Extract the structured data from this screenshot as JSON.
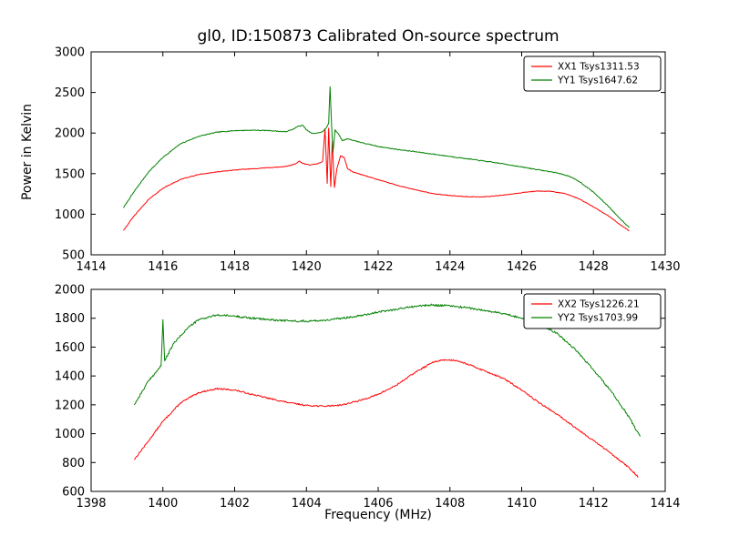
{
  "figure": {
    "title": "gl0, ID:150873 Calibrated On-source spectrum",
    "xlabel": "Frequency (MHz)",
    "ylabel": "Power in Kelvin",
    "background": "#ffffff"
  },
  "colors": {
    "xx": "#ff0000",
    "yy": "#008000",
    "axis": "#000000",
    "legend_border": "#000000"
  },
  "chart_data": [
    {
      "type": "line",
      "title": "gl0, ID:150873 Calibrated On-source spectrum",
      "xlabel": "",
      "ylabel": "Power in Kelvin",
      "xlim": [
        1414,
        1430
      ],
      "ylim": [
        500,
        3000
      ],
      "xticks": [
        1414,
        1416,
        1418,
        1420,
        1422,
        1424,
        1426,
        1428,
        1430
      ],
      "yticks": [
        500,
        1000,
        1500,
        2000,
        2500,
        3000
      ],
      "grid": false,
      "legend_position": "upper right",
      "series": [
        {
          "name": "XX1 Tsys1311.53",
          "color": "#ff0000",
          "noise": 4,
          "seed": 42,
          "points": [
            [
              1414.9,
              800
            ],
            [
              1415.2,
              980
            ],
            [
              1415.6,
              1180
            ],
            [
              1416.0,
              1320
            ],
            [
              1416.5,
              1430
            ],
            [
              1417.0,
              1490
            ],
            [
              1417.5,
              1520
            ],
            [
              1418.0,
              1545
            ],
            [
              1418.5,
              1560
            ],
            [
              1419.0,
              1575
            ],
            [
              1419.4,
              1585
            ],
            [
              1419.7,
              1620
            ],
            [
              1419.8,
              1655
            ],
            [
              1419.9,
              1625
            ],
            [
              1420.1,
              1605
            ],
            [
              1420.3,
              1620
            ],
            [
              1420.45,
              1650
            ],
            [
              1420.52,
              2050
            ],
            [
              1420.58,
              1380
            ],
            [
              1420.62,
              2060
            ],
            [
              1420.68,
              1340
            ],
            [
              1420.72,
              1900
            ],
            [
              1420.78,
              1330
            ],
            [
              1420.85,
              1560
            ],
            [
              1420.95,
              1720
            ],
            [
              1421.05,
              1700
            ],
            [
              1421.15,
              1560
            ],
            [
              1421.3,
              1520
            ],
            [
              1421.6,
              1480
            ],
            [
              1422.0,
              1425
            ],
            [
              1422.5,
              1360
            ],
            [
              1423.0,
              1305
            ],
            [
              1423.5,
              1255
            ],
            [
              1424.0,
              1230
            ],
            [
              1424.5,
              1215
            ],
            [
              1425.0,
              1215
            ],
            [
              1425.5,
              1235
            ],
            [
              1426.0,
              1265
            ],
            [
              1426.4,
              1285
            ],
            [
              1426.8,
              1282
            ],
            [
              1427.2,
              1255
            ],
            [
              1427.6,
              1190
            ],
            [
              1428.0,
              1090
            ],
            [
              1428.4,
              985
            ],
            [
              1428.7,
              885
            ],
            [
              1429.0,
              795
            ]
          ]
        },
        {
          "name": "YY1 Tsys1647.62",
          "color": "#008000",
          "noise": 5,
          "seed": 7,
          "points": [
            [
              1414.9,
              1080
            ],
            [
              1415.2,
              1280
            ],
            [
              1415.6,
              1520
            ],
            [
              1416.0,
              1700
            ],
            [
              1416.5,
              1870
            ],
            [
              1417.0,
              1960
            ],
            [
              1417.5,
              2010
            ],
            [
              1418.0,
              2030
            ],
            [
              1418.5,
              2035
            ],
            [
              1419.0,
              2030
            ],
            [
              1419.4,
              2015
            ],
            [
              1419.6,
              2040
            ],
            [
              1419.75,
              2080
            ],
            [
              1419.9,
              2095
            ],
            [
              1420.0,
              2040
            ],
            [
              1420.15,
              1995
            ],
            [
              1420.3,
              2000
            ],
            [
              1420.45,
              2015
            ],
            [
              1420.55,
              2060
            ],
            [
              1420.62,
              2120
            ],
            [
              1420.66,
              2570
            ],
            [
              1420.7,
              2120
            ],
            [
              1420.74,
              1765
            ],
            [
              1420.8,
              2040
            ],
            [
              1420.9,
              1985
            ],
            [
              1421.0,
              1905
            ],
            [
              1421.15,
              1930
            ],
            [
              1421.35,
              1905
            ],
            [
              1421.6,
              1875
            ],
            [
              1422.0,
              1835
            ],
            [
              1422.5,
              1800
            ],
            [
              1423.0,
              1772
            ],
            [
              1423.5,
              1742
            ],
            [
              1424.0,
              1712
            ],
            [
              1424.5,
              1682
            ],
            [
              1425.0,
              1652
            ],
            [
              1425.5,
              1620
            ],
            [
              1426.0,
              1582
            ],
            [
              1426.5,
              1545
            ],
            [
              1427.0,
              1508
            ],
            [
              1427.3,
              1472
            ],
            [
              1427.6,
              1405
            ],
            [
              1428.0,
              1272
            ],
            [
              1428.4,
              1105
            ],
            [
              1428.7,
              965
            ],
            [
              1429.0,
              835
            ]
          ]
        }
      ]
    },
    {
      "type": "line",
      "title": "",
      "xlabel": "Frequency (MHz)",
      "ylabel": "",
      "xlim": [
        1398,
        1414
      ],
      "ylim": [
        600,
        2000
      ],
      "xticks": [
        1398,
        1400,
        1402,
        1404,
        1406,
        1408,
        1410,
        1412,
        1414
      ],
      "yticks": [
        600,
        800,
        1000,
        1200,
        1400,
        1600,
        1800,
        2000
      ],
      "grid": false,
      "legend_position": "upper right",
      "series": [
        {
          "name": "XX2 Tsys1226.21",
          "color": "#ff0000",
          "noise": 5,
          "seed": 13,
          "points": [
            [
              1399.2,
              820
            ],
            [
              1399.6,
              950
            ],
            [
              1400.0,
              1085
            ],
            [
              1400.5,
              1215
            ],
            [
              1401.0,
              1285
            ],
            [
              1401.5,
              1312
            ],
            [
              1402.0,
              1302
            ],
            [
              1402.5,
              1272
            ],
            [
              1403.0,
              1242
            ],
            [
              1403.5,
              1215
            ],
            [
              1404.0,
              1196
            ],
            [
              1404.5,
              1190
            ],
            [
              1405.0,
              1200
            ],
            [
              1405.5,
              1230
            ],
            [
              1406.0,
              1272
            ],
            [
              1406.5,
              1335
            ],
            [
              1407.0,
              1420
            ],
            [
              1407.5,
              1492
            ],
            [
              1407.8,
              1512
            ],
            [
              1408.2,
              1508
            ],
            [
              1408.6,
              1472
            ],
            [
              1409.0,
              1432
            ],
            [
              1409.5,
              1382
            ],
            [
              1410.0,
              1302
            ],
            [
              1410.5,
              1212
            ],
            [
              1411.0,
              1132
            ],
            [
              1411.5,
              1042
            ],
            [
              1412.0,
              952
            ],
            [
              1412.5,
              862
            ],
            [
              1413.0,
              762
            ],
            [
              1413.25,
              700
            ]
          ]
        },
        {
          "name": "YY2 Tsys1703.99",
          "color": "#008000",
          "noise": 7,
          "seed": 99,
          "points": [
            [
              1399.2,
              1200
            ],
            [
              1399.6,
              1365
            ],
            [
              1399.95,
              1470
            ],
            [
              1400.0,
              1790
            ],
            [
              1400.05,
              1505
            ],
            [
              1400.3,
              1625
            ],
            [
              1400.7,
              1735
            ],
            [
              1401.0,
              1790
            ],
            [
              1401.5,
              1822
            ],
            [
              1402.0,
              1815
            ],
            [
              1402.5,
              1800
            ],
            [
              1403.0,
              1790
            ],
            [
              1403.5,
              1782
            ],
            [
              1404.0,
              1780
            ],
            [
              1404.5,
              1786
            ],
            [
              1405.0,
              1800
            ],
            [
              1405.5,
              1820
            ],
            [
              1406.0,
              1842
            ],
            [
              1406.5,
              1862
            ],
            [
              1407.0,
              1882
            ],
            [
              1407.5,
              1892
            ],
            [
              1408.0,
              1886
            ],
            [
              1408.5,
              1872
            ],
            [
              1409.0,
              1852
            ],
            [
              1409.5,
              1832
            ],
            [
              1410.0,
              1802
            ],
            [
              1410.5,
              1762
            ],
            [
              1411.0,
              1692
            ],
            [
              1411.5,
              1582
            ],
            [
              1412.0,
              1442
            ],
            [
              1412.5,
              1292
            ],
            [
              1413.0,
              1112
            ],
            [
              1413.3,
              980
            ]
          ]
        }
      ]
    }
  ]
}
